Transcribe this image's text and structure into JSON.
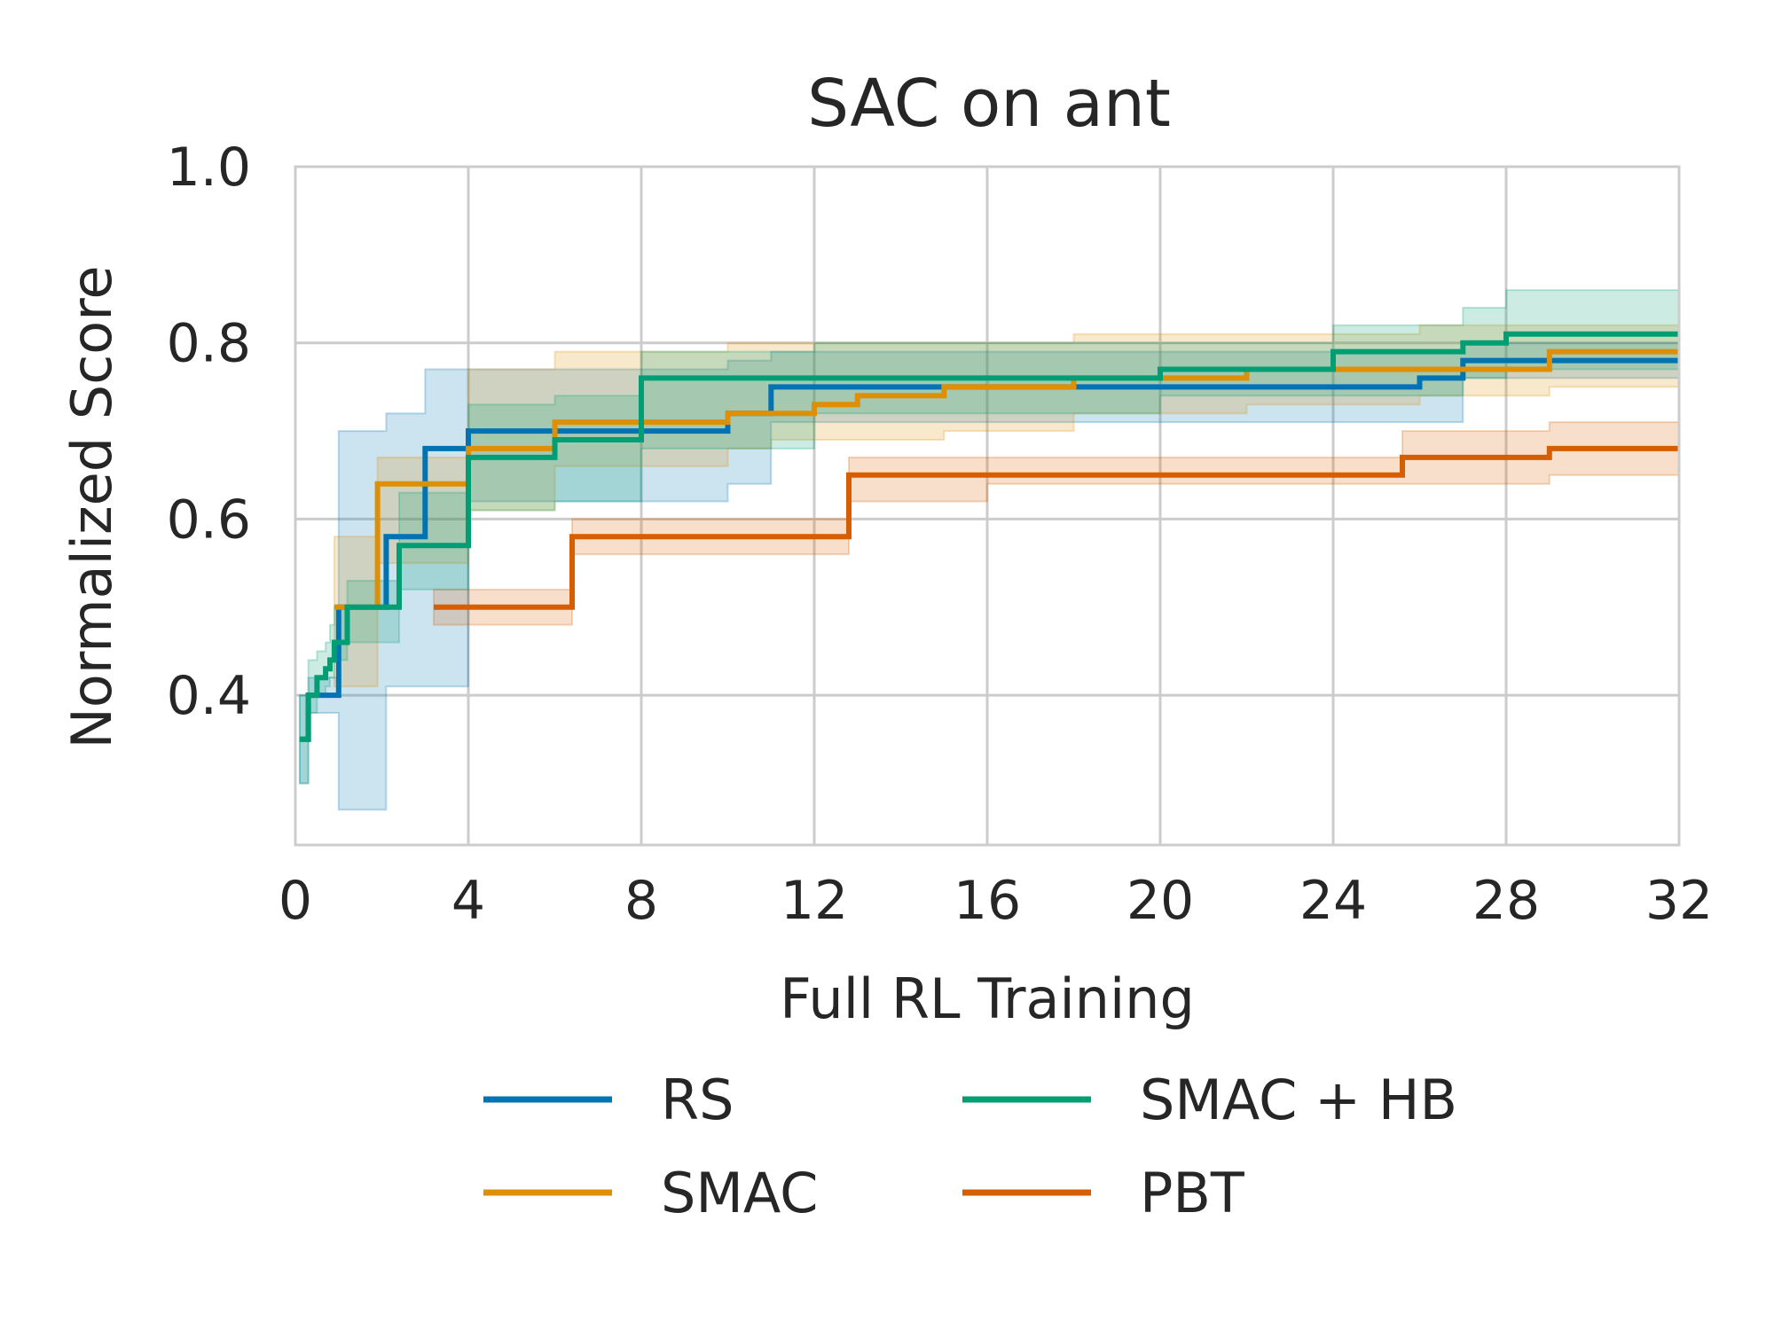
{
  "chart_data": {
    "type": "line",
    "title": "SAC on ant",
    "xlabel": "Full RL Training",
    "ylabel": "Normalized Score",
    "xlim": [
      0,
      32
    ],
    "ylim": [
      0.23,
      1.0
    ],
    "xticks": [
      0,
      4,
      8,
      12,
      16,
      20,
      24,
      28,
      32
    ],
    "xtick_labels": [
      "0",
      "4",
      "8",
      "12",
      "16",
      "20",
      "24",
      "28",
      "32"
    ],
    "yticks": [
      0.4,
      0.6,
      0.8,
      1.0
    ],
    "ytick_labels": [
      "0.4",
      "0.6",
      "0.8",
      "1.0"
    ],
    "grid": true,
    "legend_position": "bottom, below plot, 2 columns",
    "step_curves": true,
    "shaded_bands": true,
    "series": [
      {
        "name": "RS",
        "color": "#0173b2",
        "x": [
          0.1,
          0.3,
          1.0,
          2.1,
          3.0,
          4.0,
          9.0,
          10.0,
          11.0,
          26.0,
          27.0,
          28.0,
          32.0
        ],
        "y": [
          0.35,
          0.4,
          0.5,
          0.58,
          0.68,
          0.7,
          0.7,
          0.72,
          0.75,
          0.76,
          0.78,
          0.78,
          0.78
        ],
        "band_low": [
          0.3,
          0.38,
          0.27,
          0.41,
          0.41,
          0.62,
          0.62,
          0.64,
          0.71,
          0.71,
          0.76,
          0.76,
          0.76
        ],
        "band_high": [
          0.4,
          0.42,
          0.7,
          0.72,
          0.77,
          0.77,
          0.77,
          0.78,
          0.79,
          0.79,
          0.8,
          0.8,
          0.8
        ]
      },
      {
        "name": "SMAC",
        "color": "#de8f05",
        "x": [
          0.9,
          1.9,
          4.0,
          6.0,
          9.0,
          10.0,
          11.0,
          12.0,
          13.0,
          15.0,
          18.0,
          22.0,
          26.0,
          29.0,
          32.0
        ],
        "y": [
          0.5,
          0.64,
          0.68,
          0.71,
          0.71,
          0.72,
          0.72,
          0.73,
          0.74,
          0.75,
          0.76,
          0.77,
          0.77,
          0.79,
          0.79
        ],
        "band_low": [
          0.41,
          0.55,
          0.61,
          0.66,
          0.66,
          0.68,
          0.69,
          0.69,
          0.69,
          0.7,
          0.72,
          0.73,
          0.74,
          0.75,
          0.75
        ],
        "band_high": [
          0.58,
          0.67,
          0.77,
          0.79,
          0.79,
          0.8,
          0.8,
          0.8,
          0.8,
          0.8,
          0.81,
          0.81,
          0.82,
          0.82,
          0.82
        ]
      },
      {
        "name": "SMAC + HB",
        "color": "#029e73",
        "x": [
          0.1,
          0.3,
          0.5,
          0.7,
          0.8,
          0.9,
          1.2,
          2.4,
          4.0,
          6.0,
          8.0,
          12.0,
          20.0,
          24.0,
          27.0,
          28.0,
          32.0
        ],
        "y": [
          0.35,
          0.4,
          0.42,
          0.43,
          0.44,
          0.46,
          0.5,
          0.57,
          0.67,
          0.69,
          0.76,
          0.76,
          0.77,
          0.79,
          0.8,
          0.81,
          0.81
        ],
        "band_low": [
          0.3,
          0.38,
          0.4,
          0.41,
          0.42,
          0.44,
          0.46,
          0.52,
          0.61,
          0.62,
          0.68,
          0.72,
          0.74,
          0.74,
          0.76,
          0.77,
          0.77
        ],
        "band_high": [
          0.4,
          0.44,
          0.45,
          0.46,
          0.48,
          0.5,
          0.53,
          0.63,
          0.73,
          0.74,
          0.79,
          0.8,
          0.8,
          0.82,
          0.84,
          0.86,
          0.86
        ]
      },
      {
        "name": "PBT",
        "color": "#d55e00",
        "x": [
          3.2,
          6.4,
          12.8,
          16.0,
          25.6,
          29.0,
          32.0
        ],
        "y": [
          0.5,
          0.58,
          0.65,
          0.65,
          0.67,
          0.68,
          0.68
        ],
        "band_low": [
          0.48,
          0.56,
          0.62,
          0.64,
          0.64,
          0.65,
          0.65
        ],
        "band_high": [
          0.52,
          0.6,
          0.67,
          0.67,
          0.7,
          0.71,
          0.71
        ]
      }
    ]
  }
}
